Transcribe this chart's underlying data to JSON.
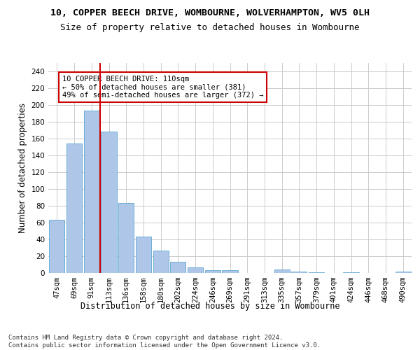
{
  "title1": "10, COPPER BEECH DRIVE, WOMBOURNE, WOLVERHAMPTON, WV5 0LH",
  "title2": "Size of property relative to detached houses in Wombourne",
  "xlabel": "Distribution of detached houses by size in Wombourne",
  "ylabel": "Number of detached properties",
  "categories": [
    "47sqm",
    "69sqm",
    "91sqm",
    "113sqm",
    "136sqm",
    "158sqm",
    "180sqm",
    "202sqm",
    "224sqm",
    "246sqm",
    "269sqm",
    "291sqm",
    "313sqm",
    "335sqm",
    "357sqm",
    "379sqm",
    "401sqm",
    "424sqm",
    "446sqm",
    "468sqm",
    "490sqm"
  ],
  "values": [
    63,
    154,
    193,
    168,
    83,
    43,
    27,
    13,
    7,
    3,
    3,
    0,
    0,
    4,
    2,
    1,
    0,
    1,
    0,
    0,
    2
  ],
  "bar_color": "#aec6e8",
  "bar_edge_color": "#6baed6",
  "vline_color": "#cc0000",
  "annotation_text": "10 COPPER BEECH DRIVE: 110sqm\n← 50% of detached houses are smaller (381)\n49% of semi-detached houses are larger (372) →",
  "annotation_box_color": "#ffffff",
  "annotation_box_edge": "#cc0000",
  "ylim": [
    0,
    250
  ],
  "yticks": [
    0,
    20,
    40,
    60,
    80,
    100,
    120,
    140,
    160,
    180,
    200,
    220,
    240
  ],
  "footer": "Contains HM Land Registry data © Crown copyright and database right 2024.\nContains public sector information licensed under the Open Government Licence v3.0.",
  "background_color": "#ffffff",
  "grid_color": "#cccccc",
  "title1_fontsize": 9.5,
  "title2_fontsize": 9,
  "tick_fontsize": 7.5,
  "ylabel_fontsize": 8.5,
  "xlabel_fontsize": 8.5,
  "annotation_fontsize": 7.5,
  "footer_fontsize": 6.5
}
